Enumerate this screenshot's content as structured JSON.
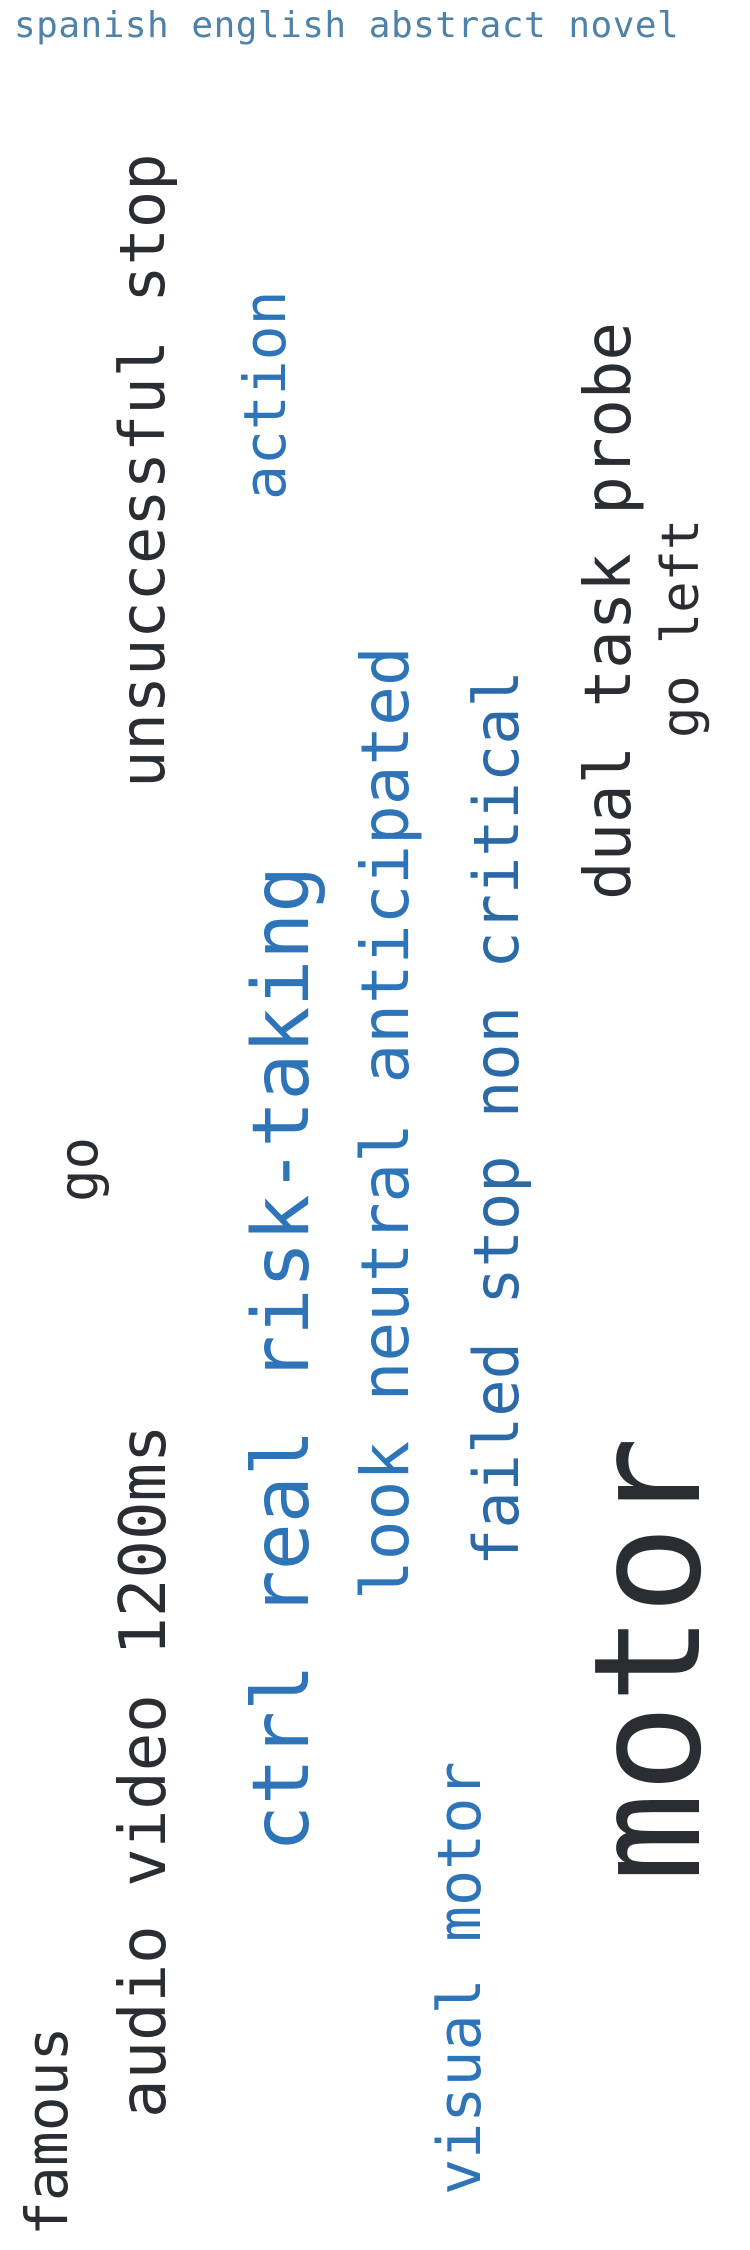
{
  "caption": "spanish english abstract novel",
  "words": {
    "unsuccessful_stop": "unsuccessful stop",
    "action": "action",
    "dual_task_probe": "dual task probe",
    "go_left": "go left",
    "ctrl_real_risk_taking": "ctrl real risk-taking",
    "look_neutral_anticipated": "look neutral anticipated",
    "failed_stop_non_critical": "failed stop non critical",
    "go": "go",
    "audio_video_1200ms": "audio video 1200ms",
    "motor": "motor",
    "visual_motor": "visual motor",
    "famous": "famous"
  },
  "colors": {
    "dark": "#2a2d31",
    "blue": "#2e74b8",
    "caption": "#4f82a8"
  }
}
